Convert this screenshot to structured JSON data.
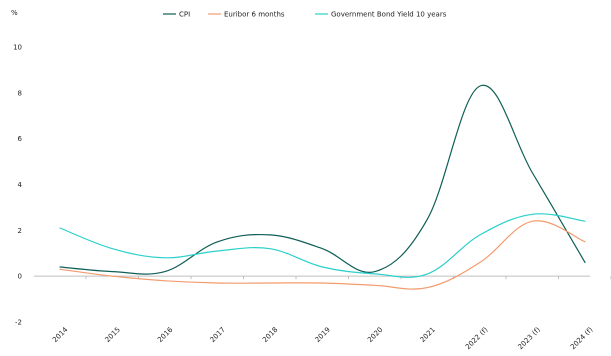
{
  "chart_data": {
    "type": "line",
    "title": "",
    "xlabel": "",
    "ylabel": "%",
    "ylim": [
      -2,
      10
    ],
    "yticks": [
      -2,
      0,
      2,
      4,
      6,
      8,
      10
    ],
    "grid": false,
    "legend_position": "top-center",
    "categories": [
      "2014",
      "2015",
      "2016",
      "2017",
      "2018",
      "2019",
      "2020",
      "2021",
      "2022 (f)",
      "2023 (f)",
      "2024 (f)"
    ],
    "series": [
      {
        "name": "CPI",
        "color": "#0f5e57",
        "values": [
          0.4,
          0.2,
          0.2,
          1.5,
          1.8,
          1.2,
          0.2,
          2.5,
          8.3,
          4.5,
          0.6
        ]
      },
      {
        "name": "Euribor 6 months",
        "color": "#f29b6e",
        "values": [
          0.3,
          0.0,
          -0.2,
          -0.3,
          -0.3,
          -0.3,
          -0.4,
          -0.5,
          0.6,
          2.4,
          1.5
        ]
      },
      {
        "name": "Government Bond Yield 10 years",
        "color": "#2ad0cc",
        "values": [
          2.1,
          1.2,
          0.8,
          1.1,
          1.2,
          0.4,
          0.1,
          0.1,
          1.8,
          2.7,
          2.4
        ]
      }
    ]
  }
}
